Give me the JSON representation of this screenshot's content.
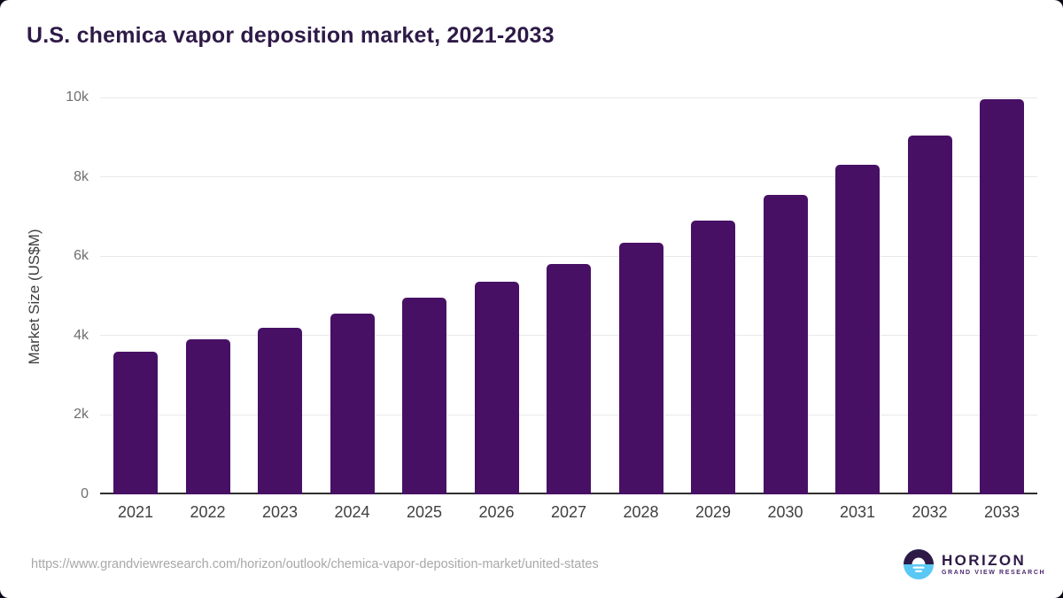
{
  "card": {
    "title": "U.S. chemica vapor deposition market, 2021-2033",
    "source_url": "https://www.grandviewresearch.com/horizon/outlook/chemica-vapor-deposition-market/united-states"
  },
  "logo": {
    "name": "HORIZON",
    "subtext": "GRAND VIEW RESEARCH",
    "icon": "horizon-sunrise-icon",
    "icon_dark_color": "#2e1a47",
    "icon_blue_color": "#5ac8f5"
  },
  "colors": {
    "bar": "#471065",
    "title_text": "#2e1a47",
    "gridline": "#e9e9e9",
    "axis_line": "#2f2f2f",
    "y_tick_text": "#6f6f6f",
    "x_tick_text": "#3f3f3f",
    "url_text": "#a8a8a8"
  },
  "chart_data": {
    "type": "bar",
    "title": "U.S. chemica vapor deposition market, 2021-2033",
    "categories": [
      "2021",
      "2022",
      "2023",
      "2024",
      "2025",
      "2026",
      "2027",
      "2028",
      "2029",
      "2030",
      "2031",
      "2032",
      "2033"
    ],
    "values": [
      3600,
      3900,
      4200,
      4550,
      4950,
      5350,
      5800,
      6350,
      6900,
      7550,
      8300,
      9050,
      9950
    ],
    "xlabel": "",
    "ylabel": "Market Size (US$M)",
    "ylim": [
      0,
      10000
    ],
    "y_ticks": [
      {
        "value": 0,
        "label": "0"
      },
      {
        "value": 2000,
        "label": "2k"
      },
      {
        "value": 4000,
        "label": "4k"
      },
      {
        "value": 6000,
        "label": "6k"
      },
      {
        "value": 8000,
        "label": "8k"
      },
      {
        "value": 10000,
        "label": "10k"
      }
    ],
    "grid": "horizontal-only",
    "legend": "none",
    "bar_color": "#471065"
  }
}
